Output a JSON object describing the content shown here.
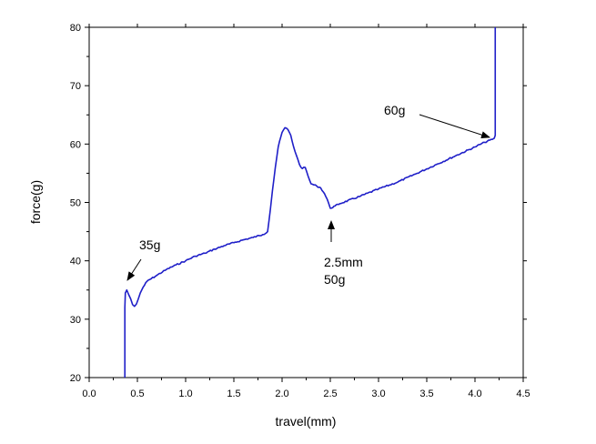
{
  "chart_data": {
    "type": "line",
    "title": "",
    "xlabel": "travel(mm)",
    "ylabel": "force(g)",
    "xlim": [
      0.0,
      4.5
    ],
    "ylim": [
      20,
      80
    ],
    "x_ticks": [
      "0.0",
      "0.5",
      "1.0",
      "1.5",
      "2.0",
      "2.5",
      "3.0",
      "3.5",
      "4.0",
      "4.5"
    ],
    "y_ticks": [
      "20",
      "30",
      "40",
      "50",
      "60",
      "70",
      "80"
    ],
    "grid": false,
    "legend": "none",
    "colors": {
      "line": "#1f1fc8",
      "axis": "#000000",
      "annotation": "#000000"
    },
    "series": [
      {
        "x": [
          0.37,
          0.37,
          0.375,
          0.39,
          0.41,
          0.43,
          0.45,
          0.47,
          0.49,
          0.51,
          0.53,
          0.56,
          0.6,
          0.7,
          0.8,
          0.9,
          1.0,
          1.1,
          1.2,
          1.3,
          1.4,
          1.5,
          1.6,
          1.7,
          1.8,
          1.85,
          1.88,
          1.9,
          1.93,
          1.96,
          2.0,
          2.03,
          2.06,
          2.09,
          2.12,
          2.15,
          2.18,
          2.21,
          2.24,
          2.27,
          2.3,
          2.33,
          2.36,
          2.4,
          2.44,
          2.48,
          2.5,
          2.55,
          2.6,
          2.8,
          3.0,
          3.2,
          3.4,
          3.6,
          3.8,
          4.0,
          4.1,
          4.18,
          4.2,
          4.21,
          4.21
        ],
        "y": [
          20,
          32,
          34.5,
          35,
          34.2,
          33.5,
          32.5,
          32.2,
          32.6,
          33.5,
          34.5,
          35.5,
          36.5,
          37.5,
          38.5,
          39.3,
          40,
          40.8,
          41.3,
          42,
          42.6,
          43.1,
          43.6,
          44,
          44.5,
          45,
          49,
          52,
          56,
          59.5,
          62,
          62.8,
          62.5,
          61.5,
          59.5,
          58,
          56.5,
          55.8,
          56,
          54.5,
          53.2,
          53,
          52.8,
          52.5,
          51.5,
          50,
          49,
          49.4,
          49.8,
          51,
          52.3,
          53.5,
          55,
          56.5,
          58,
          59.5,
          60.3,
          60.8,
          61,
          61.5,
          80
        ]
      }
    ],
    "annotations": [
      {
        "text": "35g",
        "x": 0.4,
        "y": 35
      },
      {
        "text": "2.5mm",
        "x": 2.5,
        "y": 49
      },
      {
        "text": "50g",
        "x": 2.5,
        "y": 49
      },
      {
        "text": "60g",
        "x": 4.2,
        "y": 61
      }
    ]
  }
}
